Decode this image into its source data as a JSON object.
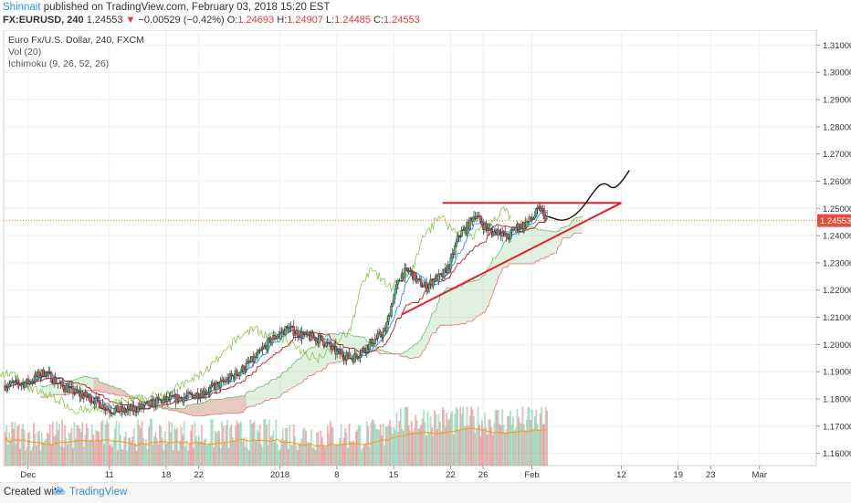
{
  "header": {
    "user": "Shinnait",
    "published": "published on TradingView.com, February 03, 2018 15:20 EST",
    "symbol": "FX:EURUSD, 240",
    "last": "1.24553",
    "arrow": "▼",
    "change": "−0.00529 (−0.42%)",
    "o_label": "O:",
    "o": "1.24693",
    "h_label": "H:",
    "h": "1.24907",
    "l_label": "L:",
    "l": "1.24485",
    "c_label": "C:",
    "c": "1.24553"
  },
  "legend": {
    "title": "Euro Fx/U.S. Dollar, 240, FXCM",
    "vol": "Vol (20)",
    "ichimoku": "Ichimoku (9, 26, 52, 26)"
  },
  "footer": {
    "created": "Created with",
    "brand": "TradingView"
  },
  "colors": {
    "up": "#53b987",
    "down": "#eb4d5c",
    "trendline": "#e5202d",
    "price_line": "#e67e22",
    "tenkan": "#2196f3",
    "kijun": "#b71c1c",
    "chikou": "#8bc34a",
    "cloud_green": "#a5d6a7",
    "cloud_red": "#ef9a9a",
    "vol_ma": "#f39c12"
  },
  "chart_data": {
    "type": "candlestick",
    "price_axis": {
      "ylim": [
        1.1555,
        1.3155
      ],
      "ticks": [
        "1.16000",
        "1.17000",
        "1.18000",
        "1.19000",
        "1.20000",
        "1.21000",
        "1.22000",
        "1.23000",
        "1.24000",
        "1.25000",
        "1.26000",
        "1.27000",
        "1.28000",
        "1.29000",
        "1.30000",
        "1.31000"
      ]
    },
    "time_axis": {
      "ticks": [
        {
          "label": "Dec",
          "day": 0
        },
        {
          "label": "11",
          "day": 10
        },
        {
          "label": "18",
          "day": 17
        },
        {
          "label": "22",
          "day": 21
        },
        {
          "label": "2018",
          "day": 31
        },
        {
          "label": "8",
          "day": 38
        },
        {
          "label": "15",
          "day": 45
        },
        {
          "label": "22",
          "day": 52
        },
        {
          "label": "26",
          "day": 56
        },
        {
          "label": "Feb",
          "day": 62
        },
        {
          "label": "12",
          "day": 73
        },
        {
          "label": "19",
          "day": 80
        },
        {
          "label": "23",
          "day": 84
        },
        {
          "label": "Mar",
          "day": 90
        }
      ],
      "xlim_days": [
        -3,
        97
      ]
    },
    "close_path": [
      [
        -3,
        1.185
      ],
      [
        0,
        1.186
      ],
      [
        2,
        1.19
      ],
      [
        4,
        1.185
      ],
      [
        6,
        1.182
      ],
      [
        8,
        1.18
      ],
      [
        10,
        1.176
      ],
      [
        12,
        1.1755
      ],
      [
        14,
        1.177
      ],
      [
        16,
        1.179
      ],
      [
        18,
        1.18
      ],
      [
        20,
        1.181
      ],
      [
        22,
        1.183
      ],
      [
        24,
        1.186
      ],
      [
        26,
        1.19
      ],
      [
        28,
        1.195
      ],
      [
        30,
        1.202
      ],
      [
        32,
        1.206
      ],
      [
        34,
        1.203
      ],
      [
        36,
        1.202
      ],
      [
        38,
        1.197
      ],
      [
        40,
        1.195
      ],
      [
        42,
        1.2
      ],
      [
        44,
        1.205
      ],
      [
        45,
        1.218
      ],
      [
        46,
        1.226
      ],
      [
        47,
        1.227
      ],
      [
        48,
        1.223
      ],
      [
        49,
        1.221
      ],
      [
        50,
        1.224
      ],
      [
        51,
        1.225
      ],
      [
        52,
        1.23
      ],
      [
        53,
        1.24
      ],
      [
        54,
        1.243
      ],
      [
        55,
        1.248
      ],
      [
        56,
        1.244
      ],
      [
        57,
        1.241
      ],
      [
        58,
        1.242
      ],
      [
        59,
        1.239
      ],
      [
        60,
        1.243
      ],
      [
        61,
        1.244
      ],
      [
        62,
        1.246
      ],
      [
        63,
        1.25
      ],
      [
        64,
        1.2455
      ]
    ],
    "last_price": 1.24553,
    "last_price_label": "1.24553",
    "trendline_upper": {
      "from": [
        51,
        1.252
      ],
      "to": [
        73,
        1.252
      ]
    },
    "trendline_lower": {
      "from": [
        46,
        1.211
      ],
      "to": [
        73,
        1.252
      ]
    },
    "projection": [
      [
        64,
        1.247
      ],
      [
        66,
        1.245
      ],
      [
        68,
        1.249
      ],
      [
        70,
        1.258
      ],
      [
        71,
        1.2595
      ],
      [
        72,
        1.257
      ],
      [
        73,
        1.2595
      ],
      [
        74,
        1.264
      ]
    ],
    "cloud_green_spans": [
      [
        37,
        55
      ],
      [
        56,
        72
      ]
    ],
    "cloud_red_spans": [
      [
        -3,
        1
      ],
      [
        8,
        27
      ]
    ],
    "volume": {
      "max_height_frac": 1.0
    }
  }
}
